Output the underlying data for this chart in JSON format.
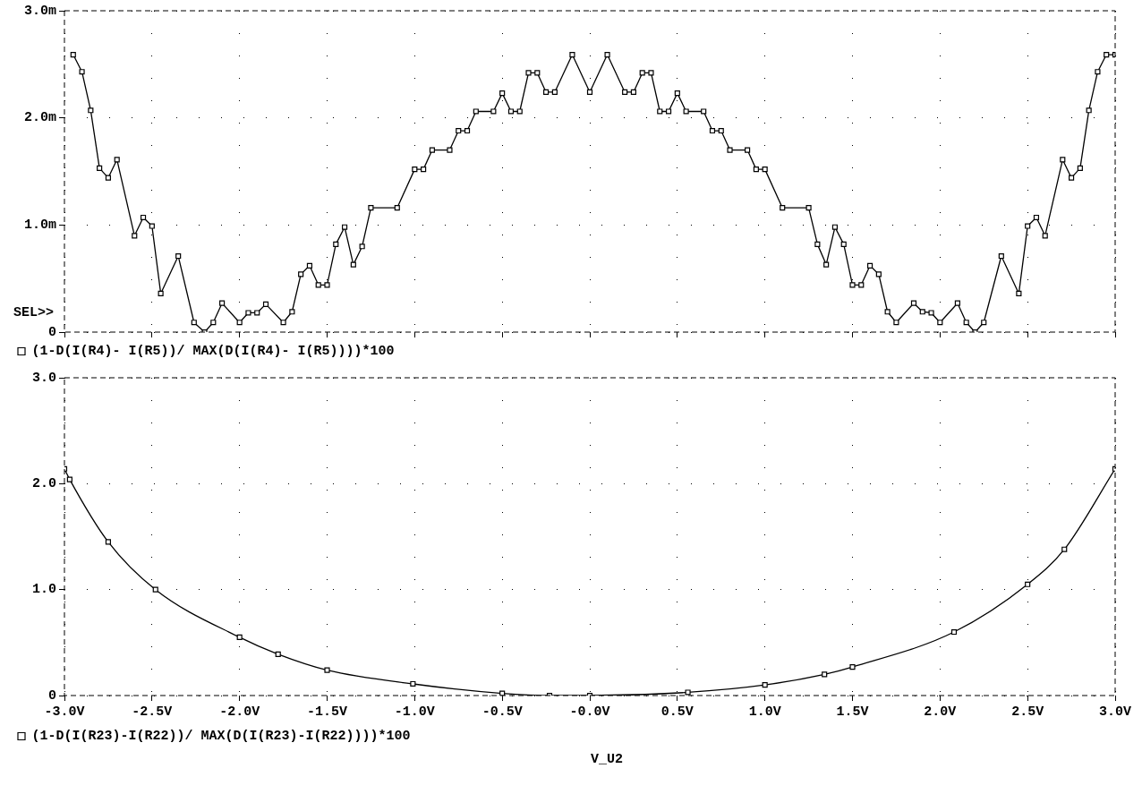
{
  "chart_data": [
    {
      "type": "line",
      "xlim": [
        -3,
        3
      ],
      "ylim": [
        0,
        3
      ],
      "tick_labels": "y",
      "grid": true,
      "legend": "bottom left",
      "marker": "square",
      "line_style": "solid",
      "xticks": [
        {
          "value": -3,
          "label": null
        },
        {
          "value": -2.5,
          "label": null
        },
        {
          "value": -2,
          "label": null
        },
        {
          "value": -1.5,
          "label": null
        },
        {
          "value": -1,
          "label": null
        },
        {
          "value": -0.5,
          "label": null
        },
        {
          "value": 0,
          "label": null
        },
        {
          "value": 0.5,
          "label": null
        },
        {
          "value": 1,
          "label": null
        },
        {
          "value": 1.5,
          "label": null
        },
        {
          "value": 2,
          "label": null
        },
        {
          "value": 2.5,
          "label": null
        },
        {
          "value": 3,
          "label": null
        }
      ],
      "yticks": [
        0,
        {
          "value": 1,
          "label": "1.0m"
        },
        {
          "value": 2,
          "label": "2.0m"
        },
        {
          "value": 3,
          "label": "3.0m"
        }
      ],
      "annotations": [
        "SEL>>"
      ],
      "x": [
        -2.95,
        -2.9,
        -2.85,
        -2.8,
        -2.75,
        -2.7,
        -2.6,
        -2.55,
        -2.5,
        -2.45,
        -2.35,
        -2.26,
        -2.2,
        -2.15,
        -2.1,
        -2,
        -1.95,
        -1.9,
        -1.85,
        -1.75,
        -1.7,
        -1.65,
        -1.6,
        -1.55,
        -1.5,
        -1.45,
        -1.4,
        -1.35,
        -1.3,
        -1.25,
        -1.1,
        -1,
        -0.95,
        -0.9,
        -0.8,
        -0.75,
        -0.7,
        -0.65,
        -0.55,
        -0.5,
        -0.45,
        -0.4,
        -0.35,
        -0.3,
        -0.25,
        -0.2,
        -0.1,
        0,
        0.1,
        0.2,
        0.25,
        0.3,
        0.35,
        0.4,
        0.45,
        0.5,
        0.55,
        0.65,
        0.7,
        0.75,
        0.8,
        0.9,
        0.95,
        1,
        1.1,
        1.25,
        1.3,
        1.35,
        1.4,
        1.45,
        1.5,
        1.55,
        1.6,
        1.65,
        1.7,
        1.75,
        1.85,
        1.9,
        1.95,
        2,
        2.1,
        2.15,
        2.2,
        2.25,
        2.35,
        2.45,
        2.5,
        2.55,
        2.6,
        2.7,
        2.75,
        2.8,
        2.85,
        2.9,
        2.95,
        3
      ],
      "series": [
        {
          "name": "(1-D(I(R4)- I(R5))/ MAX(D(I(R4)- I(R5))))*100",
          "color": "#000000",
          "values": [
            2.59,
            2.43,
            2.07,
            1.53,
            1.44,
            1.61,
            0.9,
            1.07,
            0.99,
            0.36,
            0.71,
            0.09,
            0,
            0.09,
            0.27,
            0.09,
            0.18,
            0.18,
            0.26,
            0.09,
            0.19,
            0.54,
            0.62,
            0.44,
            0.44,
            0.82,
            0.98,
            0.63,
            0.8,
            1.16,
            1.16,
            1.52,
            1.52,
            1.7,
            1.7,
            1.88,
            1.88,
            2.06,
            2.06,
            2.23,
            2.06,
            2.06,
            2.42,
            2.42,
            2.24,
            2.24,
            2.59,
            2.24,
            2.59,
            2.24,
            2.24,
            2.42,
            2.42,
            2.06,
            2.06,
            2.23,
            2.06,
            2.06,
            1.88,
            1.88,
            1.7,
            1.7,
            1.52,
            1.52,
            1.16,
            1.16,
            0.82,
            0.63,
            0.98,
            0.82,
            0.44,
            0.44,
            0.62,
            0.54,
            0.19,
            0.09,
            0.27,
            0.19,
            0.18,
            0.09,
            0.27,
            0.09,
            0,
            0.09,
            0.71,
            0.36,
            0.99,
            1.07,
            0.9,
            1.61,
            1.44,
            1.53,
            2.07,
            2.43,
            2.59,
            2.59
          ]
        }
      ]
    },
    {
      "type": "line",
      "xlim": [
        -3,
        3
      ],
      "ylim": [
        0,
        3
      ],
      "grid": true,
      "legend": "bottom left",
      "marker": "square",
      "line_style": "solid",
      "xlabel": "V_U2",
      "xticks": [
        {
          "value": -3,
          "label": "-3.0V"
        },
        {
          "value": -2.5,
          "label": "-2.5V"
        },
        {
          "value": -2,
          "label": "-2.0V"
        },
        {
          "value": -1.5,
          "label": "-1.5V"
        },
        {
          "value": -1,
          "label": "-1.0V"
        },
        {
          "value": -0.5,
          "label": "-0.5V"
        },
        {
          "value": 0,
          "label": "-0.0V"
        },
        {
          "value": 0.5,
          "label": "0.5V"
        },
        {
          "value": 1,
          "label": "1.0V"
        },
        {
          "value": 1.5,
          "label": "1.5V"
        },
        {
          "value": 2,
          "label": "2.0V"
        },
        {
          "value": 2.5,
          "label": "2.5V"
        },
        {
          "value": 3,
          "label": "3.0V"
        }
      ],
      "yticks": [
        0,
        {
          "value": 1,
          "label": "1.0"
        },
        {
          "value": 2,
          "label": "2.0"
        },
        {
          "value": 3,
          "label": "3.0"
        }
      ],
      "x": [
        -3,
        -2.97,
        -2.75,
        -2.48,
        -2,
        -1.78,
        -1.5,
        -1.01,
        -0.5,
        -0.23,
        0,
        0.56,
        1,
        1.34,
        1.5,
        2.08,
        2.5,
        2.71,
        3
      ],
      "series": [
        {
          "name": "(1-D(I(R23)-I(R22))/ MAX(D(I(R23)-I(R22))))*100",
          "color": "#000000",
          "values": [
            2.14,
            2.04,
            1.45,
            1,
            0.55,
            0.39,
            0.24,
            0.11,
            0.02,
            0,
            0,
            0.03,
            0.1,
            0.2,
            0.27,
            0.6,
            1.05,
            1.38,
            2.14
          ]
        }
      ]
    }
  ]
}
